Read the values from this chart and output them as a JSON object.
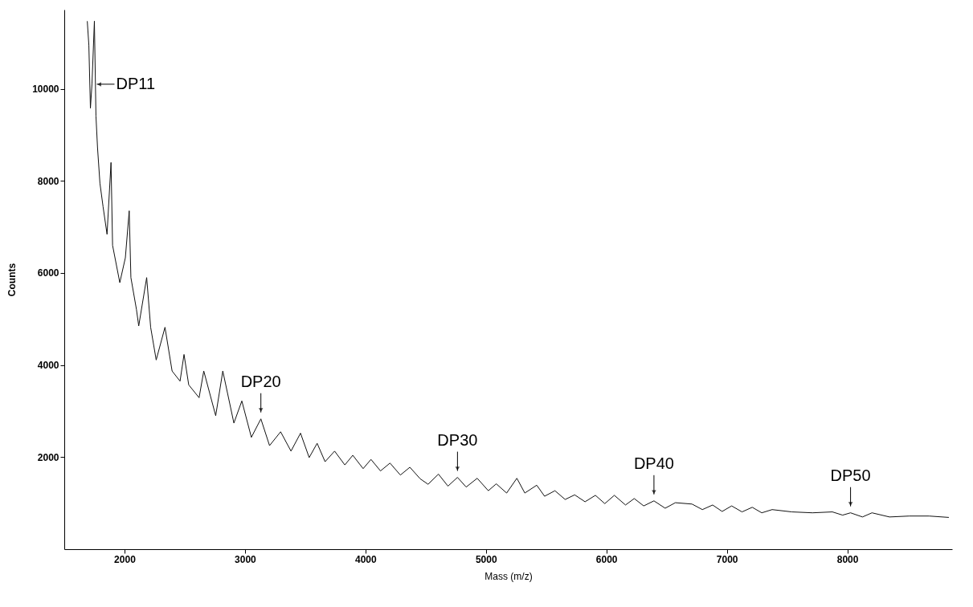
{
  "chart_data": {
    "type": "line",
    "xlabel": "Mass (m/z)",
    "ylabel": "Counts",
    "xlim": [
      1500,
      8870
    ],
    "ylim": [
      0,
      11720
    ],
    "xticks": [
      2000,
      3000,
      4000,
      5000,
      6000,
      7000,
      8000
    ],
    "yticks": [
      2000,
      4000,
      6000,
      8000,
      10000
    ],
    "grid": false,
    "marker": "none",
    "line_style": "solid",
    "series": [
      {
        "color": "#111111",
        "x": [
          1691,
          1704,
          1717,
          1730,
          1750,
          1763,
          1776,
          1796,
          1822,
          1855,
          1888,
          1901,
          1961,
          2007,
          2039,
          2053,
          2099,
          2118,
          2184,
          2217,
          2263,
          2336,
          2395,
          2461,
          2494,
          2533,
          2619,
          2658,
          2757,
          2816,
          2908,
          2974,
          3053,
          3132,
          3204,
          3296,
          3382,
          3461,
          3533,
          3599,
          3665,
          3744,
          3829,
          3895,
          3981,
          4046,
          4125,
          4204,
          4290,
          4369,
          4454,
          4520,
          4606,
          4685,
          4764,
          4836,
          4928,
          5020,
          5086,
          5172,
          5257,
          5323,
          5422,
          5487,
          5573,
          5658,
          5737,
          5823,
          5909,
          5987,
          6066,
          6159,
          6231,
          6310,
          6395,
          6488,
          6573,
          6711,
          6797,
          6882,
          6961,
          7040,
          7126,
          7211,
          7290,
          7376,
          7540,
          7711,
          7876,
          7961,
          8027,
          8126,
          8205,
          8350,
          8514,
          8679,
          8843
        ],
        "values": [
          11470,
          10950,
          9580,
          10100,
          11470,
          9410,
          8720,
          7950,
          7440,
          6840,
          8400,
          6600,
          5790,
          6330,
          7350,
          5900,
          5210,
          4850,
          5900,
          4820,
          4110,
          4820,
          3870,
          3650,
          4230,
          3570,
          3290,
          3870,
          2900,
          3870,
          2740,
          3220,
          2430,
          2830,
          2250,
          2550,
          2130,
          2520,
          1990,
          2300,
          1900,
          2130,
          1830,
          2040,
          1750,
          1950,
          1700,
          1870,
          1610,
          1780,
          1530,
          1410,
          1630,
          1370,
          1560,
          1350,
          1540,
          1270,
          1420,
          1220,
          1540,
          1220,
          1390,
          1150,
          1270,
          1080,
          1180,
          1030,
          1170,
          990,
          1170,
          960,
          1100,
          940,
          1050,
          890,
          1010,
          980,
          860,
          960,
          820,
          940,
          810,
          910,
          790,
          860,
          810,
          790,
          810,
          740,
          790,
          700,
          790,
          700,
          720,
          720,
          690
        ]
      }
    ],
    "annotations": [
      {
        "text": "DP11",
        "x": 1730,
        "y": 10100
      },
      {
        "text": "DP20",
        "x": 3132,
        "y": 2830
      },
      {
        "text": "DP30",
        "x": 4764,
        "y": 1560
      },
      {
        "text": "DP40",
        "x": 6395,
        "y": 1050
      },
      {
        "text": "DP50",
        "x": 8027,
        "y": 790
      }
    ]
  }
}
